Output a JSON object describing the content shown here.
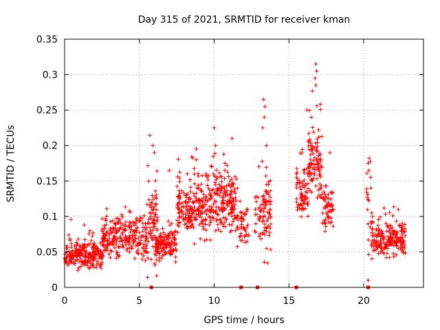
{
  "chart_data": {
    "type": "scatter",
    "title": "Day 315 of 2021, SRMTID for receiver kman",
    "xlabel": "GPS time / hours",
    "ylabel": "SRMTID / TECUs",
    "xlim": [
      0,
      24
    ],
    "ylim": [
      0,
      0.35
    ],
    "grid": true,
    "marker": "+",
    "color": "#ff0000",
    "x_ticks": [
      0,
      5,
      10,
      15,
      20
    ],
    "x_tick_labels": [
      "0",
      "5",
      "10",
      "15",
      "20"
    ],
    "y_ticks": [
      0,
      0.05,
      0.1,
      0.15,
      0.2,
      0.25,
      0.3,
      0.35
    ],
    "y_tick_labels": [
      "0",
      "0.05",
      "0.1",
      "0.15",
      "0.2",
      "0.25",
      "0.3",
      "0.35"
    ],
    "zero_markers_x": [
      5.8,
      11.8,
      12.9,
      15.5,
      20.3
    ],
    "segments": [
      {
        "x0": 0.0,
        "x1": 2.5,
        "base": 0.045,
        "spread": 0.02,
        "n": 230
      },
      {
        "x0": 2.5,
        "x1": 5.5,
        "base": 0.07,
        "spread": 0.03,
        "n": 260
      },
      {
        "x0": 5.5,
        "x1": 6.2,
        "base": 0.09,
        "spread": 0.06,
        "n": 70
      },
      {
        "x0": 6.0,
        "x1": 7.5,
        "base": 0.06,
        "spread": 0.025,
        "n": 130
      },
      {
        "x0": 7.5,
        "x1": 9.5,
        "base": 0.11,
        "spread": 0.04,
        "n": 200
      },
      {
        "x0": 9.5,
        "x1": 11.5,
        "base": 0.12,
        "spread": 0.045,
        "n": 200
      },
      {
        "x0": 11.5,
        "x1": 12.3,
        "base": 0.09,
        "spread": 0.03,
        "n": 50
      },
      {
        "x0": 12.7,
        "x1": 13.8,
        "base": 0.1,
        "spread": 0.05,
        "n": 90
      },
      {
        "x0": 15.5,
        "x1": 16.3,
        "base": 0.13,
        "spread": 0.04,
        "n": 70
      },
      {
        "x0": 16.3,
        "x1": 17.2,
        "base": 0.17,
        "spread": 0.05,
        "n": 100
      },
      {
        "x0": 17.2,
        "x1": 18.0,
        "base": 0.11,
        "spread": 0.035,
        "n": 60
      },
      {
        "x0": 20.2,
        "x1": 20.6,
        "base": 0.1,
        "spread": 0.05,
        "n": 25
      },
      {
        "x0": 20.5,
        "x1": 22.8,
        "base": 0.065,
        "spread": 0.025,
        "n": 200
      }
    ],
    "spikes": [
      {
        "x": 5.9,
        "y": 0.2
      },
      {
        "x": 6.0,
        "y": 0.19
      },
      {
        "x": 7.0,
        "y": 0.165
      },
      {
        "x": 10.0,
        "y": 0.225
      },
      {
        "x": 10.1,
        "y": 0.2
      },
      {
        "x": 11.2,
        "y": 0.21
      },
      {
        "x": 13.3,
        "y": 0.265
      },
      {
        "x": 13.4,
        "y": 0.255
      },
      {
        "x": 13.35,
        "y": 0.24
      },
      {
        "x": 13.25,
        "y": 0.225
      },
      {
        "x": 13.5,
        "y": 0.2
      },
      {
        "x": 16.2,
        "y": 0.25
      },
      {
        "x": 16.5,
        "y": 0.24
      },
      {
        "x": 16.8,
        "y": 0.315
      },
      {
        "x": 16.85,
        "y": 0.305
      },
      {
        "x": 16.75,
        "y": 0.295
      },
      {
        "x": 16.8,
        "y": 0.285
      },
      {
        "x": 20.3,
        "y": 0.175
      },
      {
        "x": 20.35,
        "y": 0.165
      },
      {
        "x": 20.3,
        "y": 0.01
      }
    ]
  }
}
